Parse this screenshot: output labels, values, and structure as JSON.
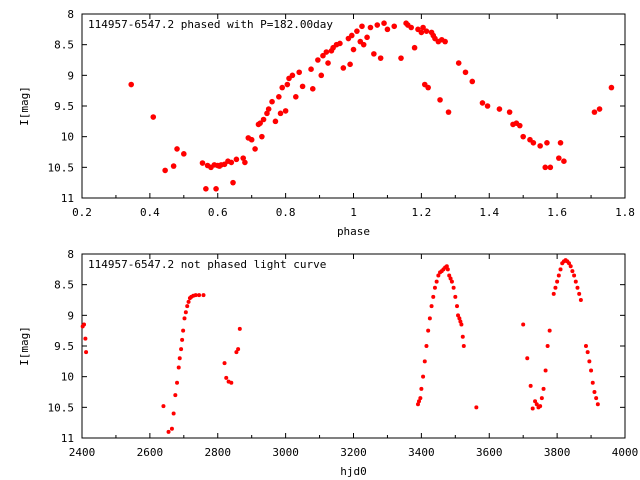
{
  "colors": {
    "series": "#ff0000",
    "axis": "#000000",
    "background": "#ffffff"
  },
  "chart_data": [
    {
      "type": "scatter",
      "title": "114957-6547.2 phased with P=182.00day",
      "xlabel": "phase",
      "ylabel": "I[mag]",
      "xlim": [
        0.2,
        1.8
      ],
      "ylim": [
        8,
        11
      ],
      "y_inverted": true,
      "grid": false,
      "xticks": [
        "0.2",
        "0.4",
        "0.6",
        "0.8",
        "1",
        "1.2",
        "1.4",
        "1.6",
        "1.8"
      ],
      "yticks": [
        "8",
        "8.5",
        "9",
        "9.5",
        "10",
        "10.5",
        "11"
      ],
      "series": [
        {
          "marker": "filled-circle",
          "x": [
            0.345,
            0.41,
            0.445,
            0.47,
            0.48,
            0.5,
            0.555,
            0.565,
            0.57,
            0.58,
            0.59,
            0.595,
            0.6,
            0.605,
            0.61,
            0.62,
            0.63,
            0.64,
            0.645,
            0.655,
            0.675,
            0.68,
            0.69,
            0.7,
            0.71,
            0.72,
            0.725,
            0.73,
            0.735,
            0.745,
            0.75,
            0.76,
            0.77,
            0.78,
            0.785,
            0.79,
            0.8,
            0.805,
            0.81,
            0.82,
            0.83,
            0.84,
            0.85,
            0.875,
            0.88,
            0.895,
            0.905,
            0.91,
            0.92,
            0.925,
            0.935,
            0.94,
            0.95,
            0.96,
            0.97,
            0.985,
            0.99,
            0.995,
            1.0,
            1.01,
            1.02,
            1.025,
            1.03,
            1.04,
            1.05,
            1.06,
            1.07,
            1.08,
            1.09,
            1.1,
            1.12,
            1.14,
            1.155,
            1.16,
            1.17,
            1.18,
            1.19,
            1.2,
            1.205,
            1.21,
            1.215,
            1.22,
            1.23,
            1.235,
            1.24,
            1.25,
            1.255,
            1.26,
            1.27,
            1.28,
            1.31,
            1.33,
            1.35,
            1.38,
            1.395,
            1.43,
            1.46,
            1.47,
            1.48,
            1.49,
            1.5,
            1.52,
            1.53,
            1.55,
            1.565,
            1.57,
            1.58,
            1.605,
            1.61,
            1.62,
            1.71,
            1.725,
            1.76
          ],
          "y": [
            9.15,
            9.68,
            10.55,
            10.48,
            10.2,
            10.28,
            10.43,
            10.85,
            10.47,
            10.5,
            10.46,
            10.85,
            10.47,
            10.48,
            10.46,
            10.45,
            10.4,
            10.42,
            10.75,
            10.37,
            10.35,
            10.42,
            10.02,
            10.05,
            10.2,
            9.8,
            9.78,
            10.0,
            9.72,
            9.62,
            9.55,
            9.43,
            9.75,
            9.35,
            9.62,
            9.2,
            9.58,
            9.15,
            9.05,
            9.0,
            9.35,
            8.95,
            9.18,
            8.9,
            9.22,
            8.75,
            9.0,
            8.68,
            8.62,
            8.8,
            8.6,
            8.55,
            8.5,
            8.48,
            8.88,
            8.4,
            8.82,
            8.35,
            8.58,
            8.28,
            8.45,
            8.2,
            8.5,
            8.38,
            8.22,
            8.65,
            8.18,
            8.72,
            8.15,
            8.25,
            8.2,
            8.72,
            8.15,
            8.18,
            8.22,
            8.55,
            8.25,
            8.3,
            8.22,
            9.15,
            8.28,
            9.2,
            8.3,
            8.35,
            8.4,
            8.45,
            9.4,
            8.42,
            8.45,
            9.6,
            8.8,
            8.95,
            9.1,
            9.45,
            9.5,
            9.55,
            9.6,
            9.8,
            9.78,
            9.82,
            10.0,
            10.05,
            10.1,
            10.15,
            10.5,
            10.1,
            10.5,
            10.35,
            10.1,
            10.4,
            9.6,
            9.55,
            9.2
          ]
        }
      ]
    },
    {
      "type": "scatter",
      "title": "114957-6547.2 not phased light curve",
      "xlabel": "hjd0",
      "ylabel": "I[mag]",
      "xlim": [
        2400,
        4000
      ],
      "ylim": [
        8,
        11
      ],
      "y_inverted": true,
      "grid": false,
      "xticks": [
        "2400",
        "2600",
        "2800",
        "3000",
        "3200",
        "3400",
        "3600",
        "3800",
        "4000"
      ],
      "yticks": [
        "8",
        "8.5",
        "9",
        "9.5",
        "10",
        "10.5",
        "11"
      ],
      "series": [
        {
          "marker": "filled-circle",
          "x": [
            2402,
            2406,
            2410,
            2412,
            2640,
            2655,
            2665,
            2670,
            2675,
            2680,
            2685,
            2688,
            2692,
            2695,
            2698,
            2702,
            2706,
            2710,
            2714,
            2718,
            2722,
            2728,
            2735,
            2745,
            2758,
            2820,
            2825,
            2832,
            2840,
            2855,
            2860,
            2865,
            3390,
            3393,
            3397,
            3400,
            3405,
            3410,
            3415,
            3420,
            3425,
            3430,
            3435,
            3440,
            3445,
            3450,
            3455,
            3460,
            3465,
            3470,
            3475,
            3478,
            3482,
            3486,
            3490,
            3495,
            3500,
            3505,
            3508,
            3512,
            3515,
            3518,
            3522,
            3525,
            3562,
            3700,
            3712,
            3722,
            3728,
            3735,
            3740,
            3745,
            3750,
            3755,
            3760,
            3766,
            3772,
            3778,
            3790,
            3795,
            3800,
            3805,
            3810,
            3815,
            3820,
            3825,
            3830,
            3835,
            3840,
            3845,
            3850,
            3855,
            3860,
            3865,
            3870,
            3885,
            3890,
            3895,
            3900,
            3905,
            3910,
            3915,
            3920
          ],
          "y": [
            9.18,
            9.15,
            9.38,
            9.6,
            10.48,
            10.9,
            10.85,
            10.6,
            10.3,
            10.1,
            9.85,
            9.7,
            9.55,
            9.4,
            9.25,
            9.05,
            8.95,
            8.85,
            8.78,
            8.72,
            8.7,
            8.68,
            8.67,
            8.67,
            8.67,
            9.78,
            10.02,
            10.08,
            10.1,
            9.6,
            9.55,
            9.22,
            10.45,
            10.4,
            10.35,
            10.2,
            10.0,
            9.75,
            9.5,
            9.25,
            9.05,
            8.85,
            8.7,
            8.55,
            8.45,
            8.35,
            8.3,
            8.28,
            8.25,
            8.22,
            8.2,
            8.25,
            8.35,
            8.4,
            8.45,
            8.55,
            8.7,
            8.85,
            9.0,
            9.05,
            9.1,
            9.15,
            9.35,
            9.5,
            10.5,
            9.15,
            9.7,
            10.15,
            10.52,
            10.4,
            10.45,
            10.5,
            10.48,
            10.35,
            10.2,
            9.9,
            9.5,
            9.25,
            8.65,
            8.55,
            8.45,
            8.35,
            8.25,
            8.15,
            8.12,
            8.1,
            8.12,
            8.15,
            8.2,
            8.28,
            8.35,
            8.45,
            8.55,
            8.65,
            8.75,
            9.5,
            9.6,
            9.75,
            9.9,
            10.1,
            10.25,
            10.35,
            10.45
          ]
        }
      ]
    }
  ]
}
